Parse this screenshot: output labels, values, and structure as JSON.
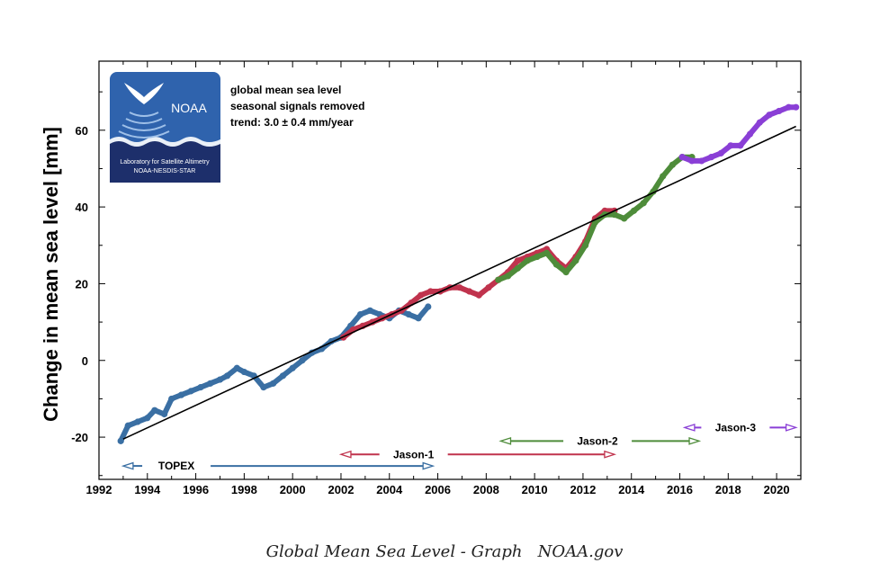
{
  "chart_data": {
    "type": "scatter",
    "title": "",
    "xlabel": "",
    "ylabel": "Change in mean sea level [mm]",
    "xlim": [
      1992,
      2021
    ],
    "ylim": [
      -31,
      78
    ],
    "xticks": [
      1992,
      1994,
      1996,
      1998,
      2000,
      2002,
      2004,
      2006,
      2008,
      2010,
      2012,
      2014,
      2016,
      2018,
      2020
    ],
    "yticks": [
      -20,
      0,
      20,
      40,
      60
    ],
    "grid": false,
    "notes": [
      "global mean sea level",
      "seasonal signals removed",
      "trend:  3.0 ± 0.4 mm/year"
    ],
    "trend": {
      "x": [
        1993.0,
        2020.8
      ],
      "y": [
        -20.5,
        61.0
      ]
    },
    "series": [
      {
        "name": "TOPEX",
        "color": "#3a6fa3",
        "x": [
          1992.9,
          1993.2,
          1993.6,
          1994.0,
          1994.3,
          1994.7,
          1995.0,
          1995.4,
          1995.8,
          1996.2,
          1996.6,
          1997.0,
          1997.3,
          1997.7,
          1998.0,
          1998.4,
          1998.8,
          1999.2,
          1999.6,
          2000.0,
          2000.4,
          2000.8,
          2001.2,
          2001.6,
          2002.0,
          2002.4,
          2002.8,
          2003.2,
          2003.6,
          2004.0,
          2004.4,
          2004.8,
          2005.2,
          2005.6
        ],
        "y": [
          -21,
          -17,
          -16,
          -15,
          -13,
          -14,
          -10,
          -9,
          -8,
          -7,
          -6,
          -5,
          -4,
          -2,
          -3,
          -4,
          -7,
          -6,
          -4,
          -2,
          0,
          2,
          3,
          5,
          6,
          9,
          12,
          13,
          12,
          11,
          13,
          12,
          11,
          14
        ]
      },
      {
        "name": "Jason-1",
        "color": "#c0334d",
        "x": [
          2002.1,
          2002.5,
          2002.9,
          2003.3,
          2003.7,
          2004.1,
          2004.5,
          2004.9,
          2005.3,
          2005.7,
          2006.1,
          2006.5,
          2006.9,
          2007.3,
          2007.7,
          2008.1,
          2008.5,
          2008.9,
          2009.3,
          2009.7,
          2010.1,
          2010.5,
          2010.9,
          2011.3,
          2011.7,
          2012.1,
          2012.5,
          2012.9,
          2013.3
        ],
        "y": [
          6,
          8,
          9,
          10,
          11,
          12,
          13,
          15,
          17,
          18,
          18,
          19,
          19,
          18,
          17,
          19,
          21,
          23,
          26,
          27,
          28,
          29,
          26,
          24,
          27,
          31,
          37,
          39,
          39
        ]
      },
      {
        "name": "Jason-2",
        "color": "#4e8c3a",
        "x": [
          2008.5,
          2008.9,
          2009.3,
          2009.7,
          2010.1,
          2010.5,
          2010.9,
          2011.3,
          2011.7,
          2012.1,
          2012.5,
          2012.9,
          2013.3,
          2013.7,
          2014.1,
          2014.5,
          2014.9,
          2015.3,
          2015.7,
          2016.1,
          2016.5
        ],
        "y": [
          21,
          22,
          24,
          26,
          27,
          28,
          25,
          23,
          26,
          30,
          36,
          38,
          38,
          37,
          39,
          41,
          44,
          48,
          51,
          53,
          53
        ]
      },
      {
        "name": "Jason-3",
        "color": "#8a3fd6",
        "x": [
          2016.1,
          2016.5,
          2016.9,
          2017.3,
          2017.7,
          2018.1,
          2018.5,
          2018.9,
          2019.3,
          2019.7,
          2020.1,
          2020.5,
          2020.8
        ],
        "y": [
          53,
          52,
          52,
          53,
          54,
          56,
          56,
          59,
          62,
          64,
          65,
          66,
          66
        ]
      }
    ],
    "mission_ranges": [
      {
        "name": "TOPEX",
        "start": 1993.0,
        "end": 2005.8,
        "y": -27.5,
        "label_x": 1995.2
      },
      {
        "name": "Jason-1",
        "start": 2002.0,
        "end": 2013.3,
        "y": -24.5,
        "label_x": 2005.0
      },
      {
        "name": "Jason-2",
        "start": 2008.6,
        "end": 2016.8,
        "y": -21.0,
        "label_x": 2012.6
      },
      {
        "name": "Jason-3",
        "start": 2016.2,
        "end": 2020.8,
        "y": -17.5,
        "label_x": 2018.3
      }
    ]
  },
  "logo": {
    "name": "NOAA",
    "line1": "Laboratory for Satellite Altimetry",
    "line2": "NOAA-NESDIS-STAR"
  },
  "caption": {
    "title": "Global Mean Sea Level - Graph",
    "source": "NOAA.gov"
  }
}
